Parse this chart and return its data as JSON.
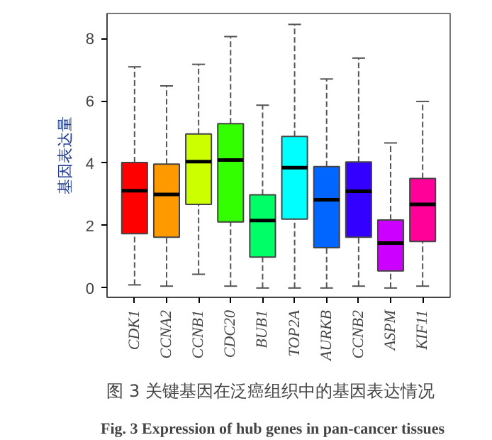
{
  "chart_data": {
    "type": "box",
    "ylabel": "基因表达量",
    "categories": [
      "CDK1",
      "CCNA2",
      "CCNB1",
      "CDC20",
      "BUB1",
      "TOP2A",
      "AURKB",
      "CCNB2",
      "ASPM",
      "KIF11"
    ],
    "colors": [
      "#ff0000",
      "#ff9900",
      "#ccff00",
      "#33ff00",
      "#00ff66",
      "#00ffff",
      "#0066ff",
      "#3300ff",
      "#cc00ff",
      "#ff0099"
    ],
    "boxes": [
      {
        "low": 0.1,
        "q1": 1.74,
        "median": 3.12,
        "q3": 4.02,
        "high": 7.09
      },
      {
        "low": 0.06,
        "q1": 1.63,
        "median": 3.0,
        "q3": 3.97,
        "high": 6.48
      },
      {
        "low": 0.44,
        "q1": 2.68,
        "median": 4.05,
        "q3": 4.94,
        "high": 7.17
      },
      {
        "low": 0.06,
        "q1": 2.12,
        "median": 4.1,
        "q3": 5.27,
        "high": 8.06
      },
      {
        "low": 0.0,
        "q1": 0.99,
        "median": 2.16,
        "q3": 2.99,
        "high": 5.86
      },
      {
        "low": 0.0,
        "q1": 2.21,
        "median": 3.86,
        "q3": 4.86,
        "high": 8.45
      },
      {
        "low": 0.0,
        "q1": 1.29,
        "median": 2.83,
        "q3": 3.89,
        "high": 6.7
      },
      {
        "low": 0.06,
        "q1": 1.63,
        "median": 3.1,
        "q3": 4.04,
        "high": 7.37
      },
      {
        "low": 0.0,
        "q1": 0.55,
        "median": 1.44,
        "q3": 2.18,
        "high": 4.65
      },
      {
        "low": 0.06,
        "q1": 1.49,
        "median": 2.68,
        "q3": 3.51,
        "high": 5.98
      }
    ],
    "ylim": [
      -0.3,
      8.8
    ],
    "yticks": [
      0,
      2,
      4,
      6,
      8
    ],
    "grid": false,
    "line_style": "dashed",
    "annotations": [
      "图 3    关键基因在泛癌组织中的基因表达情况",
      "Fig. 3    Expression of hub genes in pan-cancer tissues"
    ]
  }
}
